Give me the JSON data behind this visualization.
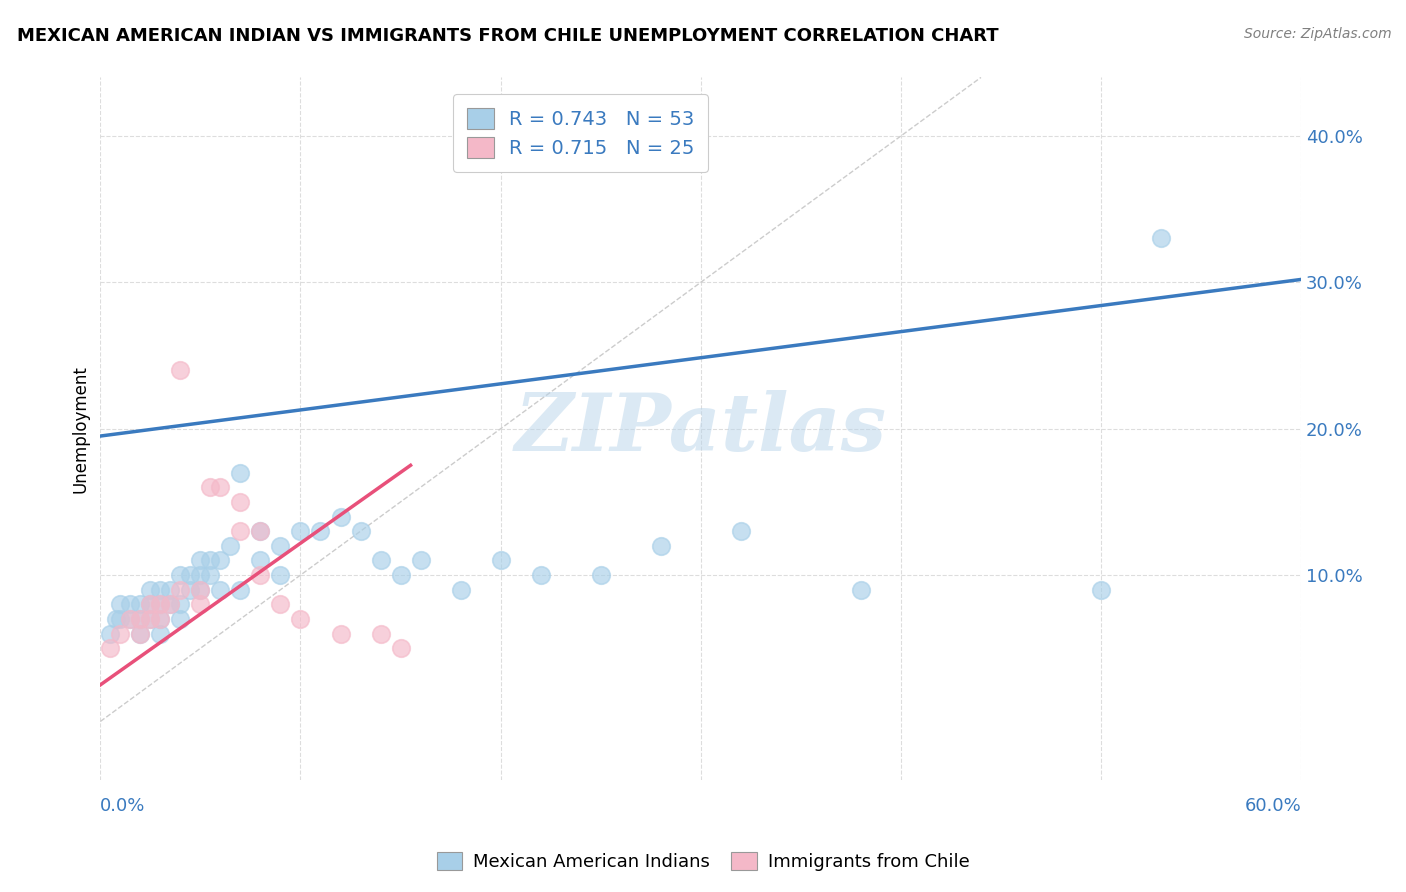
{
  "title": "MEXICAN AMERICAN INDIAN VS IMMIGRANTS FROM CHILE UNEMPLOYMENT CORRELATION CHART",
  "source": "Source: ZipAtlas.com",
  "ylabel": "Unemployment",
  "ytick_labels": [
    "10.0%",
    "20.0%",
    "30.0%",
    "40.0%"
  ],
  "ytick_values": [
    0.1,
    0.2,
    0.3,
    0.4
  ],
  "xlim": [
    0.0,
    0.6
  ],
  "ylim": [
    -0.04,
    0.44
  ],
  "watermark": "ZIPatlas",
  "legend1_label": "R = 0.743   N = 53",
  "legend2_label": "R = 0.715   N = 25",
  "legend_bottom_label1": "Mexican American Indians",
  "legend_bottom_label2": "Immigrants from Chile",
  "blue_color": "#a8cfe8",
  "pink_color": "#f4b8c8",
  "line_blue": "#3a7abf",
  "line_pink": "#e8507a",
  "diag_line_color": "#cccccc",
  "blue_scatter_x": [
    0.005,
    0.008,
    0.01,
    0.01,
    0.015,
    0.015,
    0.02,
    0.02,
    0.02,
    0.025,
    0.025,
    0.025,
    0.03,
    0.03,
    0.03,
    0.03,
    0.035,
    0.035,
    0.04,
    0.04,
    0.04,
    0.045,
    0.045,
    0.05,
    0.05,
    0.05,
    0.055,
    0.055,
    0.06,
    0.06,
    0.065,
    0.07,
    0.07,
    0.08,
    0.08,
    0.09,
    0.09,
    0.1,
    0.11,
    0.12,
    0.13,
    0.14,
    0.15,
    0.16,
    0.18,
    0.2,
    0.22,
    0.25,
    0.28,
    0.32,
    0.38,
    0.5,
    0.53
  ],
  "blue_scatter_y": [
    0.06,
    0.07,
    0.07,
    0.08,
    0.07,
    0.08,
    0.06,
    0.07,
    0.08,
    0.07,
    0.08,
    0.09,
    0.06,
    0.07,
    0.08,
    0.09,
    0.08,
    0.09,
    0.07,
    0.08,
    0.1,
    0.09,
    0.1,
    0.09,
    0.1,
    0.11,
    0.1,
    0.11,
    0.09,
    0.11,
    0.12,
    0.09,
    0.17,
    0.11,
    0.13,
    0.1,
    0.12,
    0.13,
    0.13,
    0.14,
    0.13,
    0.11,
    0.1,
    0.11,
    0.09,
    0.11,
    0.1,
    0.1,
    0.12,
    0.13,
    0.09,
    0.09,
    0.33
  ],
  "pink_scatter_x": [
    0.005,
    0.01,
    0.015,
    0.02,
    0.02,
    0.025,
    0.025,
    0.03,
    0.03,
    0.035,
    0.04,
    0.04,
    0.05,
    0.05,
    0.055,
    0.06,
    0.07,
    0.07,
    0.08,
    0.08,
    0.09,
    0.1,
    0.12,
    0.14,
    0.15
  ],
  "pink_scatter_y": [
    0.05,
    0.06,
    0.07,
    0.06,
    0.07,
    0.07,
    0.08,
    0.07,
    0.08,
    0.08,
    0.24,
    0.09,
    0.08,
    0.09,
    0.16,
    0.16,
    0.13,
    0.15,
    0.13,
    0.1,
    0.08,
    0.07,
    0.06,
    0.06,
    0.05
  ],
  "blue_line_x": [
    0.0,
    0.6
  ],
  "blue_line_y": [
    0.195,
    0.302
  ],
  "pink_line_x": [
    0.0,
    0.155
  ],
  "pink_line_y": [
    0.025,
    0.175
  ],
  "diag_line_x": [
    0.0,
    0.44
  ],
  "diag_line_y": [
    0.0,
    0.44
  ]
}
